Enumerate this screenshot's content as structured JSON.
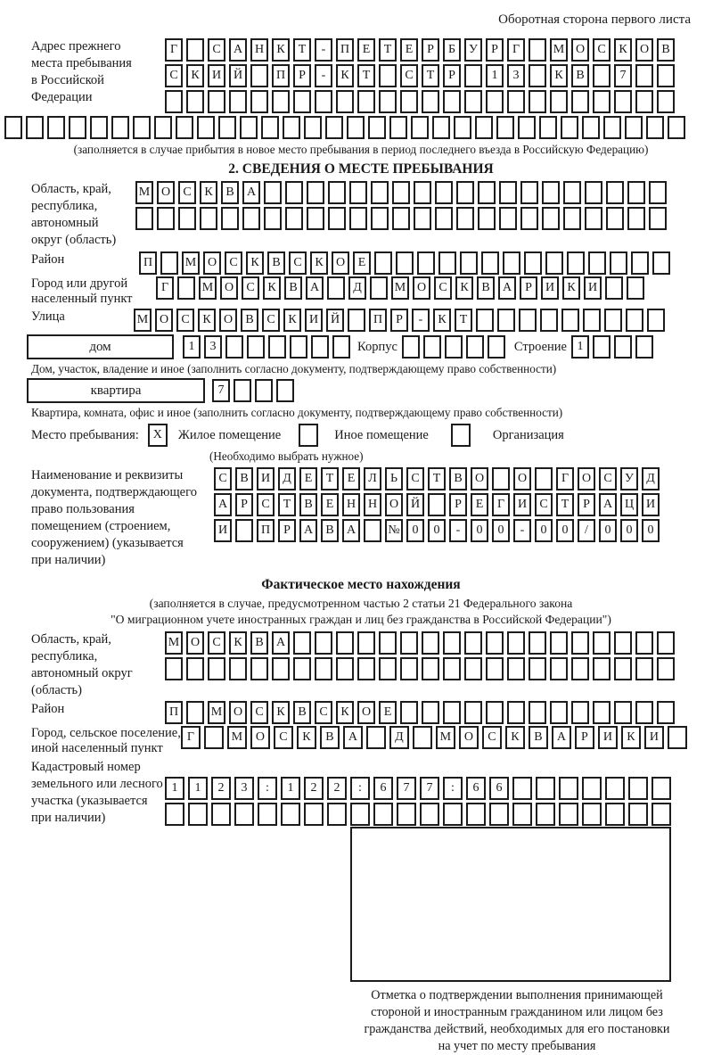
{
  "colors": {
    "ink": "#1a1a1a",
    "cell_border": "#1c1c1c",
    "background": "#ffffff"
  },
  "page": {
    "header_note": "Оборотная сторона первого листа"
  },
  "section1": {
    "label_lines": [
      "Адрес прежнего",
      "места пребывания",
      "в Российской",
      "Федерации"
    ],
    "row1": [
      "Г",
      "",
      "С",
      "А",
      "Н",
      "К",
      "Т",
      "-",
      "П",
      "Е",
      "Т",
      "Е",
      "Р",
      "Б",
      "У",
      "Р",
      "Г",
      "",
      "М",
      "О",
      "С",
      "К",
      "О",
      "В"
    ],
    "row2": [
      "С",
      "К",
      "И",
      "Й",
      "",
      "П",
      "Р",
      "-",
      "К",
      "Т",
      "",
      "С",
      "Т",
      "Р",
      "",
      "1",
      "3",
      "",
      "К",
      "В",
      "",
      "7",
      "",
      ""
    ],
    "row3": 24,
    "row4": 32,
    "caption": "(заполняется в случае прибытия в новое место пребывания в период последнего въезда в Российскую Федерацию)"
  },
  "section2": {
    "heading": "2. СВЕДЕНИЯ О МЕСТЕ ПРЕБЫВАНИЯ",
    "region": {
      "label_lines": [
        "Область, край,",
        "республика,",
        "автономный",
        "округ (область)"
      ],
      "row1": [
        "М",
        "О",
        "С",
        "К",
        "В",
        "А",
        "",
        "",
        "",
        "",
        "",
        "",
        "",
        "",
        "",
        "",
        "",
        "",
        "",
        "",
        "",
        "",
        "",
        "",
        ""
      ],
      "row2": 25
    },
    "district": {
      "label": "Район",
      "cells": [
        "П",
        "",
        "М",
        "О",
        "С",
        "К",
        "В",
        "С",
        "К",
        "О",
        "Е",
        "",
        "",
        "",
        "",
        "",
        "",
        "",
        "",
        "",
        "",
        "",
        "",
        "",
        ""
      ]
    },
    "city": {
      "label_lines": [
        "Город или другой",
        "населенный пункт"
      ],
      "cells": [
        "Г",
        "",
        "М",
        "О",
        "С",
        "К",
        "В",
        "А",
        "",
        "Д",
        "",
        "М",
        "О",
        "С",
        "К",
        "В",
        "А",
        "Р",
        "И",
        "К",
        "И",
        "",
        ""
      ]
    },
    "street": {
      "label": "Улица",
      "cells": [
        "М",
        "О",
        "С",
        "К",
        "О",
        "В",
        "С",
        "К",
        "И",
        "Й",
        "",
        "П",
        "Р",
        "-",
        "К",
        "Т",
        "",
        "",
        "",
        "",
        "",
        "",
        "",
        "",
        ""
      ]
    },
    "house": {
      "box_label": "дом",
      "cells": [
        "1",
        "3",
        "",
        "",
        "",
        "",
        "",
        ""
      ],
      "korpus_label": "Корпус",
      "korpus_cells": 5,
      "stroenie_label": "Строение",
      "stroenie_cells": [
        "1",
        "",
        "",
        ""
      ]
    },
    "house_caption": "Дом, участок, владение и иное (заполнить согласно документу, подтверждающему право собственности)",
    "apartment": {
      "box_label": "квартира",
      "cells": [
        "7",
        "",
        "",
        ""
      ]
    },
    "apartment_caption": "Квартира, комната, офис и иное (заполнить согласно документу, подтверждающему право собственности)",
    "stay": {
      "label": "Место пребывания:",
      "options": [
        {
          "mark": "X",
          "label": "Жилое помещение"
        },
        {
          "mark": "",
          "label": "Иное помещение"
        },
        {
          "mark": "",
          "label": "Организация"
        }
      ],
      "note": "(Необходимо выбрать нужное)"
    },
    "document": {
      "label_lines": [
        "Наименование и реквизиты",
        "документа, подтверждающего",
        "право пользования",
        "помещением (строением,",
        "сооружением) (указывается",
        "при наличии)"
      ],
      "row1": [
        "С",
        "В",
        "И",
        "Д",
        "Е",
        "Т",
        "Е",
        "Л",
        "Ь",
        "С",
        "Т",
        "В",
        "О",
        "",
        "О",
        "",
        "Г",
        "О",
        "С",
        "У",
        "Д"
      ],
      "row2": [
        "А",
        "Р",
        "С",
        "Т",
        "В",
        "Е",
        "Н",
        "Н",
        "О",
        "Й",
        "",
        "Р",
        "Е",
        "Г",
        "И",
        "С",
        "Т",
        "Р",
        "А",
        "Ц",
        "И"
      ],
      "row3": [
        "И",
        "",
        "П",
        "Р",
        "А",
        "В",
        "А",
        "",
        "№",
        "0",
        "0",
        "-",
        "0",
        "0",
        "-",
        "0",
        "0",
        "/",
        "0",
        "0",
        "0"
      ]
    }
  },
  "section3": {
    "heading": "Фактическое место нахождения",
    "note_lines": [
      "(заполняется в случае, предусмотренном частью 2 статьи 21 Федерального закона",
      "\"О миграционном учете иностранных граждан и лиц без гражданства в Российской Федерации\")"
    ],
    "region": {
      "label_lines": [
        "Область, край,",
        "республика,",
        "автономный округ",
        "(область)"
      ],
      "row1": [
        "М",
        "О",
        "С",
        "К",
        "В",
        "А",
        "",
        "",
        "",
        "",
        "",
        "",
        "",
        "",
        "",
        "",
        "",
        "",
        "",
        "",
        "",
        "",
        "",
        ""
      ],
      "row2": 24
    },
    "district": {
      "label": "Район",
      "cells": [
        "П",
        "",
        "М",
        "О",
        "С",
        "К",
        "В",
        "С",
        "К",
        "О",
        "Е",
        "",
        "",
        "",
        "",
        "",
        "",
        "",
        "",
        "",
        "",
        "",
        "",
        ""
      ]
    },
    "city": {
      "label_lines": [
        "Город, сельское поселение,",
        "иной населенный пункт"
      ],
      "cells": [
        "Г",
        "",
        "М",
        "О",
        "С",
        "К",
        "В",
        "А",
        "",
        "Д",
        "",
        "М",
        "О",
        "С",
        "К",
        "В",
        "А",
        "Р",
        "И",
        "К",
        "И",
        ""
      ]
    },
    "cadastre": {
      "label_lines": [
        "Кадастровый номер",
        "земельного или лесного",
        "участка (указывается",
        "при наличии)"
      ],
      "row1": [
        "1",
        "1",
        "2",
        "3",
        ":",
        "1",
        "2",
        "2",
        ":",
        "6",
        "7",
        "7",
        ":",
        "6",
        "6",
        "",
        "",
        "",
        "",
        "",
        "",
        ""
      ],
      "row2": 22
    },
    "stamp_caption_lines": [
      "Отметка о подтверждении выполнения принимающей",
      "стороной и иностранным гражданином или лицом без",
      "гражданства действий, необходимых для его постановки",
      "на учет по месту пребывания"
    ]
  }
}
